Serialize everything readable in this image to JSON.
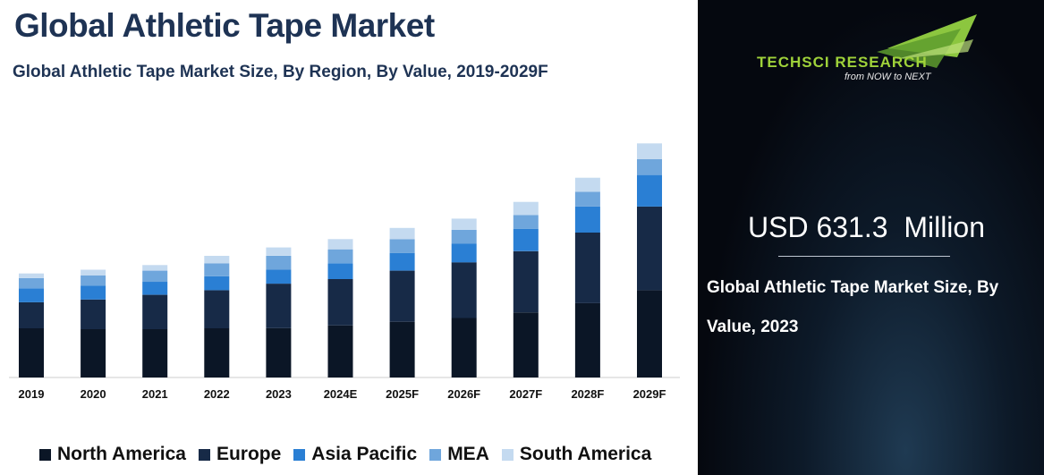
{
  "header": {
    "title": "Global Athletic Tape Market",
    "subtitle": "Global Athletic Tape Market Size, By Region, By Value, 2019-2029F"
  },
  "colors": {
    "north_america": "#0b1626",
    "europe": "#172a47",
    "asia_pacific": "#2a7fd4",
    "mea": "#6fa6dc",
    "south_america": "#c4daf0"
  },
  "chart_data": {
    "type": "bar",
    "stacked": true,
    "categories": [
      "2019",
      "2020",
      "2021",
      "2022",
      "2023",
      "2024E",
      "2025F",
      "2026F",
      "2027F",
      "2028F",
      "2029F"
    ],
    "series": [
      {
        "name": "North America",
        "values": [
          53,
          52,
          52,
          53,
          53,
          56,
          60,
          64,
          70,
          80,
          94
        ]
      },
      {
        "name": "Europe",
        "values": [
          28,
          32,
          37,
          41,
          48,
          50,
          55,
          60,
          66,
          76,
          90
        ]
      },
      {
        "name": "Asia Pacific",
        "values": [
          15,
          15,
          14,
          15,
          15,
          17,
          19,
          20,
          24,
          28,
          34
        ]
      },
      {
        "name": "MEA",
        "values": [
          11,
          11,
          12,
          14,
          15,
          15,
          15,
          15,
          15,
          16,
          17
        ]
      },
      {
        "name": "South America",
        "values": [
          5,
          6,
          6,
          8,
          9,
          11,
          12,
          12,
          14,
          15,
          17
        ]
      }
    ],
    "xlabel": "",
    "ylabel": "",
    "ylim": [
      0,
      260
    ],
    "grid": false,
    "legend_position": "bottom"
  },
  "legend": {
    "items": [
      "North America",
      "Europe",
      "Asia Pacific",
      "MEA",
      "South America"
    ]
  },
  "panel": {
    "logo_brand": "TECHSCI RESEARCH",
    "logo_tagline": "from NOW to NEXT",
    "value_text": "USD 631.3  Million",
    "description": "Global Athletic Tape Market Size, By Value, 2023"
  }
}
